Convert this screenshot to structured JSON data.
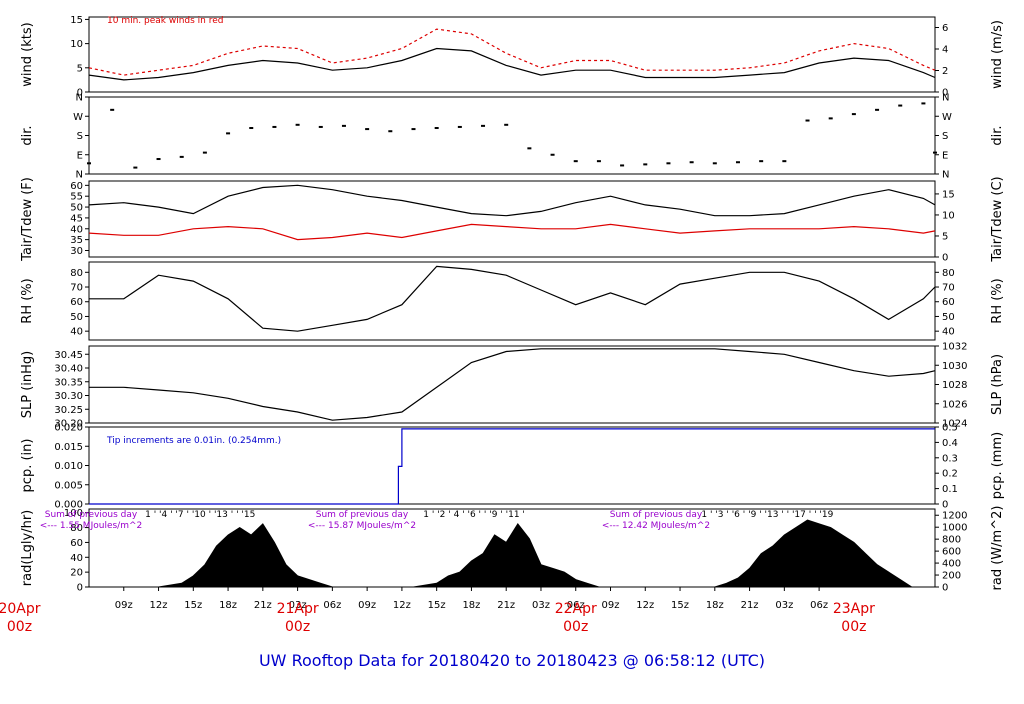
{
  "title": "UW Rooftop Data for 20180420  to  20180423 @ 06:58:12  (UTC)",
  "colors": {
    "title": "#0000cc",
    "series_black": "#000000",
    "series_red": "#dd0000",
    "series_blue": "#0000cc",
    "annotation_purple": "#9900cc",
    "day_label": "#dd0000"
  },
  "time_axis": {
    "start_hour": 6,
    "end_hour": 79,
    "tick_labels": [
      "09z",
      "12z",
      "15z",
      "18z",
      "21z",
      "03z",
      "06z",
      "09z",
      "12z",
      "15z",
      "18z",
      "21z",
      "03z",
      "06z",
      "09z",
      "12z",
      "15z",
      "18z",
      "21z",
      "03z",
      "06z"
    ],
    "day_labels": [
      {
        "hour": 0,
        "date": "20Apr",
        "time": "00z"
      },
      {
        "hour": 24,
        "date": "21Apr",
        "time": "00z"
      },
      {
        "hour": 48,
        "date": "22Apr",
        "time": "00z"
      },
      {
        "hour": 72,
        "date": "23Apr",
        "time": "00z"
      }
    ]
  },
  "chart_data": [
    {
      "type": "line",
      "id": "wind",
      "ylabel_left": "wind (kts)",
      "ylabel_right": "wind (m/s)",
      "left_ticks": [
        "0",
        "5",
        "10",
        "15"
      ],
      "right_ticks": [
        "0",
        "2",
        "4",
        "6"
      ],
      "ylim": [
        0,
        15.5
      ],
      "annotation": "10 min. peak winds in red",
      "series": [
        {
          "name": "10 min. peak winds",
          "color": "red",
          "style": "dash",
          "x": [
            6,
            9,
            12,
            15,
            18,
            21,
            24,
            27,
            30,
            33,
            36,
            39,
            42,
            45,
            48,
            51,
            54,
            57,
            60,
            63,
            66,
            69,
            72,
            75,
            78,
            79
          ],
          "y": [
            5,
            3.5,
            4.5,
            5.5,
            8,
            9.5,
            9,
            6,
            7,
            9,
            13,
            12,
            8,
            5,
            6.5,
            6.5,
            4.5,
            4.5,
            4.5,
            5,
            6,
            8.5,
            10,
            9,
            5.5,
            4.5
          ]
        },
        {
          "name": "wind",
          "color": "black",
          "style": "solid",
          "x": [
            6,
            9,
            12,
            15,
            18,
            21,
            24,
            27,
            30,
            33,
            36,
            39,
            42,
            45,
            48,
            51,
            54,
            57,
            60,
            63,
            66,
            69,
            72,
            75,
            78,
            79
          ],
          "y": [
            3.5,
            2.5,
            3,
            4,
            5.5,
            6.5,
            6,
            4.5,
            5,
            6.5,
            9,
            8.5,
            5.5,
            3.5,
            4.5,
            4.5,
            3,
            3,
            3,
            3.5,
            4,
            6,
            7,
            6.5,
            4,
            3
          ]
        }
      ]
    },
    {
      "type": "scatter",
      "id": "dir",
      "ylabel_left": "dir.",
      "ylabel_right": "dir.",
      "left_ticks": [
        "N",
        "E",
        "S",
        "W",
        "N"
      ],
      "right_ticks": [
        "N",
        "E",
        "S",
        "W",
        "N"
      ],
      "ylim": [
        0,
        360
      ],
      "series": [
        {
          "name": "dir",
          "color": "black",
          "x": [
            6,
            8,
            10,
            12,
            14,
            16,
            18,
            20,
            22,
            24,
            26,
            28,
            30,
            32,
            34,
            36,
            38,
            40,
            42,
            44,
            46,
            48,
            50,
            52,
            54,
            56,
            58,
            60,
            62,
            64,
            66,
            68,
            70,
            72,
            74,
            76,
            78,
            79
          ],
          "y": [
            50,
            300,
            30,
            70,
            80,
            100,
            190,
            215,
            220,
            230,
            220,
            225,
            210,
            200,
            210,
            215,
            220,
            225,
            230,
            120,
            90,
            60,
            60,
            40,
            45,
            50,
            55,
            50,
            55,
            60,
            60,
            250,
            260,
            280,
            300,
            320,
            330,
            100
          ]
        }
      ]
    },
    {
      "type": "line",
      "id": "temp",
      "ylabel_left": "Tair/Tdew (F)",
      "ylabel_right": "Tair/Tdew (C)",
      "left_ticks": [
        "30",
        "35",
        "40",
        "45",
        "50",
        "55",
        "60"
      ],
      "right_ticks": [
        "0",
        "5",
        "10",
        "15"
      ],
      "ylim": [
        27,
        62
      ],
      "series": [
        {
          "name": "Tair",
          "color": "black",
          "x": [
            6,
            9,
            12,
            15,
            18,
            21,
            24,
            27,
            30,
            33,
            36,
            39,
            42,
            45,
            48,
            51,
            54,
            57,
            60,
            63,
            66,
            69,
            72,
            75,
            78,
            79
          ],
          "y": [
            51,
            52,
            50,
            47,
            55,
            59,
            60,
            58,
            55,
            53,
            50,
            47,
            46,
            48,
            52,
            55,
            51,
            49,
            46,
            46,
            47,
            51,
            55,
            58,
            54,
            51
          ]
        },
        {
          "name": "Tdew",
          "color": "red",
          "x": [
            6,
            9,
            12,
            15,
            18,
            21,
            24,
            27,
            30,
            33,
            36,
            39,
            42,
            45,
            48,
            51,
            54,
            57,
            60,
            63,
            66,
            69,
            72,
            75,
            78,
            79
          ],
          "y": [
            38,
            37,
            37,
            40,
            41,
            40,
            35,
            36,
            38,
            36,
            39,
            42,
            41,
            40,
            40,
            42,
            40,
            38,
            39,
            40,
            40,
            40,
            41,
            40,
            38,
            39
          ]
        }
      ]
    },
    {
      "type": "line",
      "id": "rh",
      "ylabel_left": "RH (%)",
      "ylabel_right": "RH (%)",
      "left_ticks": [
        "40",
        "50",
        "60",
        "70",
        "80"
      ],
      "right_ticks": [
        "40",
        "50",
        "60",
        "70",
        "80"
      ],
      "ylim": [
        34,
        87
      ],
      "series": [
        {
          "name": "RH",
          "color": "black",
          "x": [
            6,
            9,
            12,
            15,
            18,
            21,
            24,
            27,
            30,
            33,
            36,
            39,
            42,
            45,
            48,
            51,
            54,
            57,
            60,
            63,
            66,
            69,
            72,
            75,
            78,
            79
          ],
          "y": [
            62,
            62,
            78,
            74,
            62,
            42,
            40,
            44,
            48,
            58,
            84,
            82,
            78,
            68,
            58,
            66,
            58,
            72,
            76,
            80,
            80,
            74,
            62,
            48,
            62,
            70
          ]
        }
      ]
    },
    {
      "type": "line",
      "id": "slp",
      "ylabel_left": "SLP (inHg)",
      "ylabel_right": "SLP (hPa)",
      "left_ticks": [
        "30.20",
        "30.25",
        "30.30",
        "30.35",
        "30.40",
        "30.45"
      ],
      "right_ticks": [
        "1024",
        "1026",
        "1028",
        "1030",
        "1032"
      ],
      "ylim": [
        30.2,
        30.48
      ],
      "series": [
        {
          "name": "SLP",
          "color": "black",
          "x": [
            6,
            9,
            12,
            15,
            18,
            21,
            24,
            27,
            30,
            33,
            36,
            39,
            42,
            45,
            48,
            51,
            54,
            57,
            60,
            63,
            66,
            69,
            72,
            75,
            78,
            79
          ],
          "y": [
            30.33,
            30.33,
            30.32,
            30.31,
            30.29,
            30.26,
            30.24,
            30.21,
            30.22,
            30.24,
            30.33,
            30.42,
            30.46,
            30.47,
            30.47,
            30.47,
            30.47,
            30.47,
            30.47,
            30.46,
            30.45,
            30.42,
            30.39,
            30.37,
            30.38,
            30.39
          ]
        }
      ]
    },
    {
      "type": "line",
      "id": "pcp",
      "ylabel_left": "pcp. (in)",
      "ylabel_right": "pcp. (mm)",
      "left_ticks": [
        "0.000",
        "0.005",
        "0.010",
        "0.015",
        "0.020"
      ],
      "right_ticks": [
        "0",
        "0.1",
        "0.2",
        "0.3",
        "0.4",
        "0.5"
      ],
      "ylim": [
        0,
        0.0205
      ],
      "annotation": "Tip increments are 0.01in. (0.254mm.)",
      "series": [
        {
          "name": "pcp",
          "color": "blue",
          "x": [
            6,
            32.7,
            32.7,
            33,
            33,
            79
          ],
          "y": [
            0,
            0,
            0.01,
            0.01,
            0.02,
            0.02
          ]
        }
      ]
    },
    {
      "type": "area",
      "id": "rad",
      "ylabel_left": "rad(Lgly/hr)",
      "ylabel_right": "rad (W/m^2)",
      "left_ticks": [
        "0",
        "20",
        "40",
        "60",
        "80",
        "100"
      ],
      "right_ticks": [
        "0",
        "200",
        "400",
        "600",
        "800",
        "1000",
        "1200"
      ],
      "ylim": [
        0,
        105
      ],
      "series": [
        {
          "name": "rad",
          "color": "black",
          "x": [
            6,
            10,
            12,
            14,
            15,
            16,
            17,
            18,
            19,
            20,
            21,
            22,
            23,
            24,
            25,
            26,
            27,
            28,
            34,
            36,
            37,
            38,
            39,
            40,
            41,
            42,
            43,
            44,
            45,
            46,
            47,
            48,
            49,
            50,
            51,
            58,
            60,
            61,
            62,
            63,
            64,
            65,
            66,
            67,
            68,
            69,
            70,
            71,
            72,
            73,
            74,
            75,
            76,
            77,
            78,
            79
          ],
          "y": [
            0,
            0,
            0,
            5,
            15,
            30,
            55,
            70,
            80,
            70,
            85,
            60,
            30,
            15,
            10,
            5,
            0,
            0,
            0,
            5,
            15,
            20,
            35,
            45,
            70,
            60,
            85,
            65,
            30,
            25,
            20,
            10,
            5,
            0,
            0,
            0,
            0,
            5,
            12,
            25,
            45,
            55,
            70,
            80,
            90,
            85,
            80,
            70,
            60,
            45,
            30,
            20,
            10,
            0,
            0,
            0
          ]
        }
      ]
    }
  ],
  "rad_labels": {
    "hour_marks": [
      {
        "hour": 13,
        "text": "1 ' '4 ' '7 ' '10 ' '13 ' ' '15"
      },
      {
        "hour": 37,
        "text": "1 ' '2 ' 4 ' '6 ' ' '9 ' '11 '"
      },
      {
        "hour": 61,
        "text": "1 ' '3 ' '6 ' '9 ' '13 ' ' '17 ' ' '19"
      }
    ],
    "daily_sums": [
      {
        "line1": "Sum of previous day",
        "line2": "<--- 1.55 MJoules/m^2"
      },
      {
        "line1": "Sum of previous day",
        "line2": "<--- 15.87 MJoules/m^2"
      },
      {
        "line1": "Sum of previous day",
        "line2": "<--- 12.42 MJoules/m^2"
      }
    ]
  }
}
